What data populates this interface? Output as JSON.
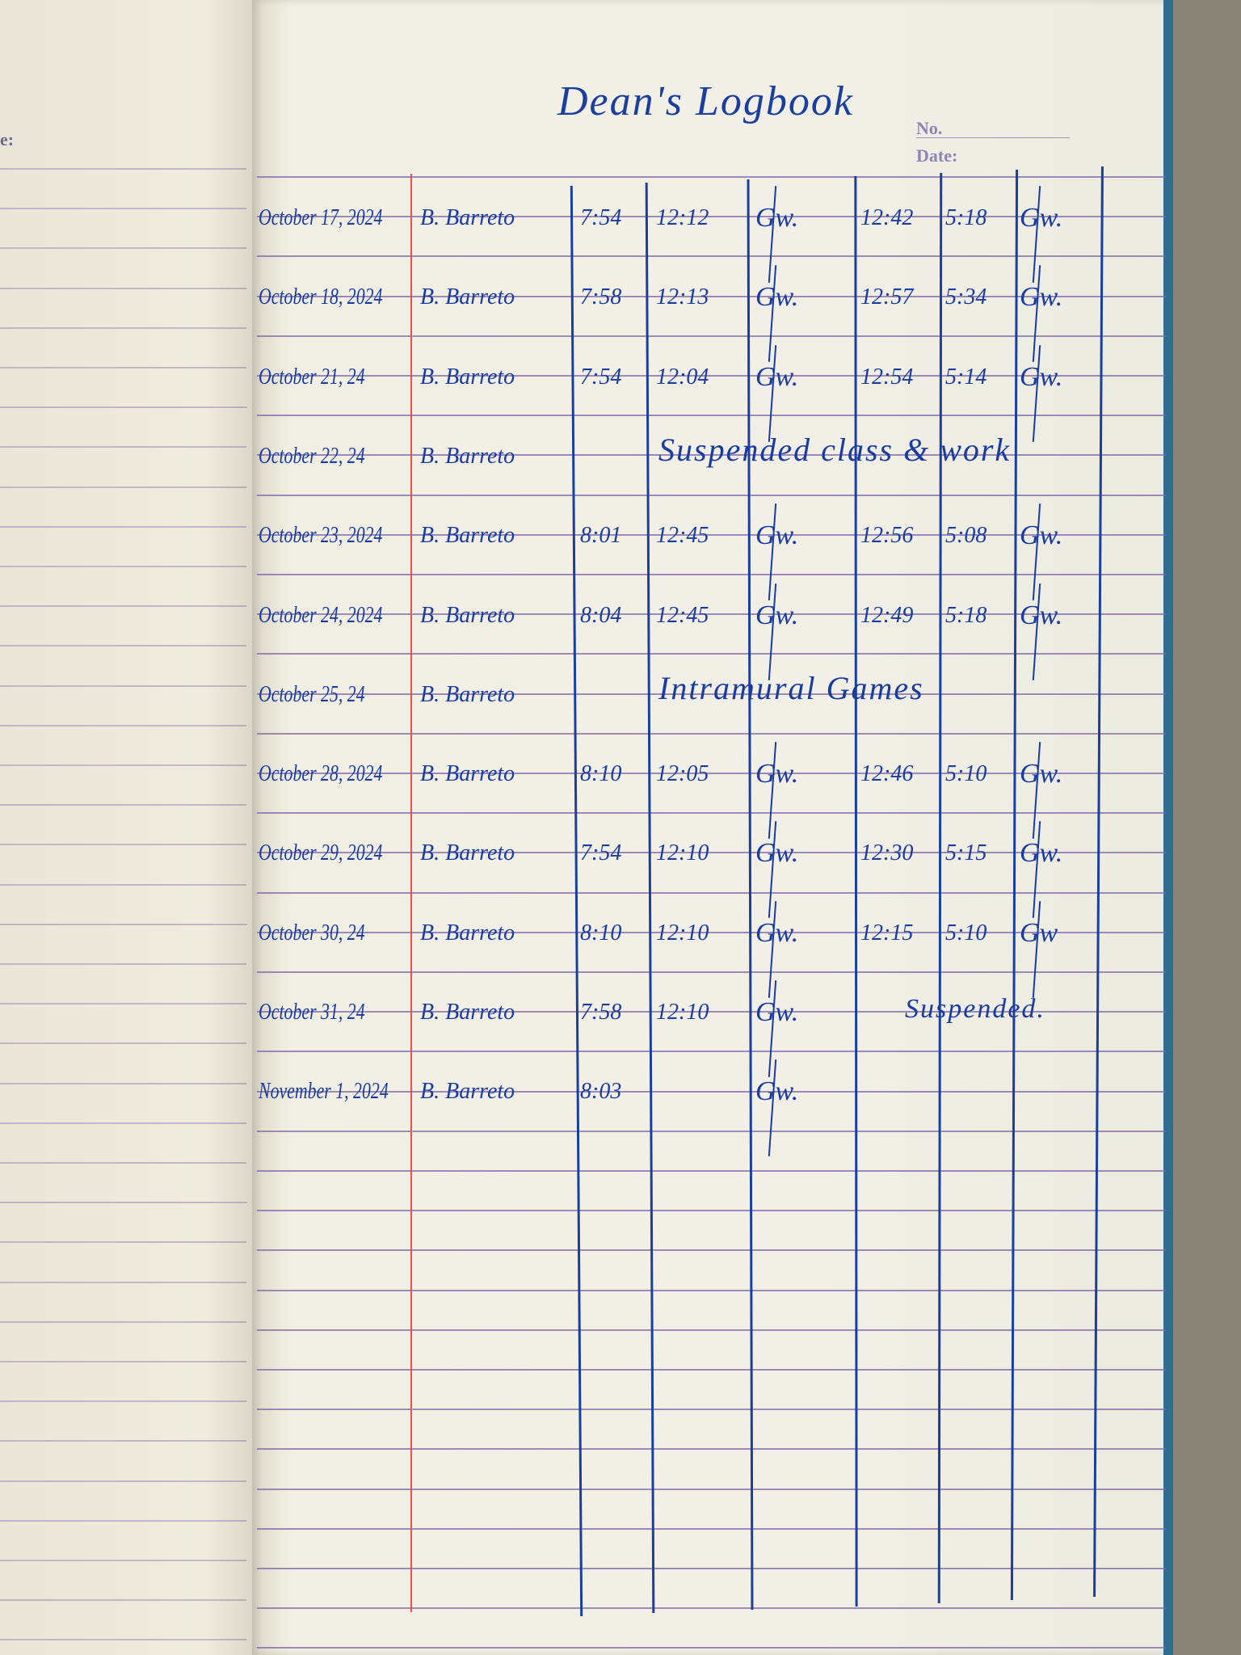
{
  "title": "Dean's Logbook",
  "header": {
    "no_label": "No.",
    "date_label": "Date:",
    "left_page_label": "e:"
  },
  "ink_color": "#1a3c9e",
  "rows": [
    {
      "date": "October 17, 2024",
      "name": "B. Barreto",
      "am_in": "7:54",
      "am_out": "12:12",
      "am_sig": "Gw.",
      "pm_in": "12:42",
      "pm_out": "5:18",
      "pm_sig": "Gw."
    },
    {
      "date": "October 18, 2024",
      "name": "B. Barreto",
      "am_in": "7:58",
      "am_out": "12:13",
      "am_sig": "Gw.",
      "pm_in": "12:57",
      "pm_out": "5:34",
      "pm_sig": "Gw."
    },
    {
      "date": "October 21, 24",
      "name": "B. Barreto",
      "am_in": "7:54",
      "am_out": "12:04",
      "am_sig": "Gw.",
      "pm_in": "12:54",
      "pm_out": "5:14",
      "pm_sig": "Gw."
    },
    {
      "date": "October 22, 24",
      "name": "B. Barreto",
      "note": "Suspended class & work"
    },
    {
      "date": "October 23, 2024",
      "name": "B. Barreto",
      "am_in": "8:01",
      "am_out": "12:45",
      "am_sig": "Gw.",
      "pm_in": "12:56",
      "pm_out": "5:08",
      "pm_sig": "Gw."
    },
    {
      "date": "October 24, 2024",
      "name": "B. Barreto",
      "am_in": "8:04",
      "am_out": "12:45",
      "am_sig": "Gw.",
      "pm_in": "12:49",
      "pm_out": "5:18",
      "pm_sig": "Gw."
    },
    {
      "date": "October 25, 24",
      "name": "B. Barreto",
      "note": "Intramural Games"
    },
    {
      "date": "October 28, 2024",
      "name": "B. Barreto",
      "am_in": "8:10",
      "am_out": "12:05",
      "am_sig": "Gw.",
      "pm_in": "12:46",
      "pm_out": "5:10",
      "pm_sig": "Gw."
    },
    {
      "date": "October 29, 2024",
      "name": "B. Barreto",
      "am_in": "7:54",
      "am_out": "12:10",
      "am_sig": "Gw.",
      "pm_in": "12:30",
      "pm_out": "5:15",
      "pm_sig": "Gw."
    },
    {
      "date": "October 30, 24",
      "name": "B. Barreto",
      "am_in": "8:10",
      "am_out": "12:10",
      "am_sig": "Gw.",
      "pm_in": "12:15",
      "pm_out": "5:10",
      "pm_sig": "Gw"
    },
    {
      "date": "October 31, 24",
      "name": "B. Barreto",
      "am_in": "7:58",
      "am_out": "12:10",
      "am_sig": "Gw.",
      "pm_note": "Suspended."
    },
    {
      "date": "November 1, 2024",
      "name": "B. Barreto",
      "am_in": "8:03",
      "am_sig": "Gw."
    }
  ]
}
